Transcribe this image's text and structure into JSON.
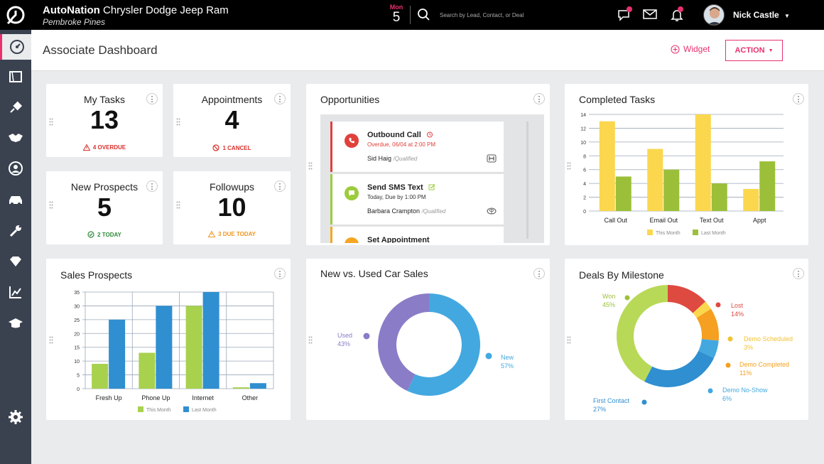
{
  "topbar": {
    "brand_name": "AutoNation",
    "dealer": "Chrysler Dodge Jeep Ram",
    "location": "Pembroke Pines",
    "date_day": "Mon",
    "date_num": "5",
    "search_placeholder": "Search by Lead, Contact, or Deal",
    "user_name": "Nick Castle"
  },
  "sidebar": {
    "items": [
      "dashboard-icon",
      "notes-icon",
      "satellite-icon",
      "handshake-icon",
      "user-icon",
      "car-icon",
      "wrench-icon",
      "diamond-icon",
      "chart-icon",
      "graduation-icon",
      "settings-icon"
    ]
  },
  "header": {
    "title": "Associate Dashboard",
    "widget_label": "Widget",
    "action_label": "ACTION"
  },
  "stats": {
    "my_tasks": {
      "title": "My Tasks",
      "value": "13",
      "foot": "4 OVERDUE",
      "color": "#d9302b"
    },
    "appointments": {
      "title": "Appointments",
      "value": "4",
      "foot": "1 CANCEL",
      "color": "#d9302b"
    },
    "new_prospects": {
      "title": "New Prospects",
      "value": "5",
      "foot": "2 TODAY",
      "color": "#2e8b3a"
    },
    "followups": {
      "title": "Followups",
      "value": "10",
      "foot": "3 DUE TODAY",
      "color": "#f0961e"
    }
  },
  "opportunities": {
    "title": "Opportunities",
    "items": [
      {
        "title": "Outbound Call",
        "sub": "Overdue, 06/04 at 2:00 PM",
        "name": "Sid Haig",
        "qual": "/Qualified",
        "color": "#e0413c"
      },
      {
        "title": "Send SMS Text",
        "sub": "Today, Due by 1:00 PM",
        "name": "Barbara Crampton",
        "qual": "/Qualified",
        "color": "#9ccc3c"
      },
      {
        "title": "Set Appointment",
        "sub": "",
        "name": "",
        "qual": "",
        "color": "#f5a623"
      }
    ]
  },
  "completed_tasks": {
    "title": "Completed Tasks",
    "legend_this": "This Month",
    "legend_last": "Last Month"
  },
  "sales_prospects": {
    "title": "Sales Prospects",
    "legend_this": "This Month",
    "legend_last": "Last Month"
  },
  "new_used": {
    "title": "New vs. Used Car Sales",
    "labels": [
      {
        "name": "Used",
        "pct": "43%"
      },
      {
        "name": "New",
        "pct": "57%"
      }
    ]
  },
  "deals": {
    "title": "Deals By Milestone",
    "labels": [
      {
        "name": "Won",
        "pct": "45%"
      },
      {
        "name": "Lost",
        "pct": "14%"
      },
      {
        "name": "Demo Scheduled",
        "pct": "3%"
      },
      {
        "name": "Demo Completed",
        "pct": "11%"
      },
      {
        "name": "Demo No-Show",
        "pct": "6%"
      },
      {
        "name": "First Contact",
        "pct": "27%"
      }
    ]
  },
  "chart_data": [
    {
      "type": "bar",
      "title": "Completed Tasks",
      "categories": [
        "Call Out",
        "Email Out",
        "Text Out",
        "Appt"
      ],
      "series": [
        {
          "name": "This Month",
          "values": [
            13,
            9,
            14,
            3.2
          ],
          "color": "#fbd74e"
        },
        {
          "name": "Last Month",
          "values": [
            5,
            6,
            4,
            7.2
          ],
          "color": "#9cbf3a"
        }
      ],
      "ylim": [
        0,
        14
      ],
      "yticks": [
        0,
        2,
        4,
        6,
        8,
        10,
        12,
        14
      ],
      "legend": "bottom",
      "grid": true
    },
    {
      "type": "bar",
      "title": "Sales Prospects",
      "categories": [
        "Fresh Up",
        "Phone Up",
        "Internet",
        "Other"
      ],
      "series": [
        {
          "name": "This Month",
          "values": [
            9,
            13,
            30,
            0.5
          ],
          "color": "#a8d14e"
        },
        {
          "name": "Last Month",
          "values": [
            25,
            30,
            35,
            2
          ],
          "color": "#2f8fd0"
        }
      ],
      "ylim": [
        0,
        35
      ],
      "yticks": [
        0,
        5,
        10,
        15,
        20,
        25,
        30,
        35
      ],
      "legend": "bottom",
      "grid": true
    },
    {
      "type": "pie",
      "title": "New vs. Used Car Sales",
      "categories": [
        "New",
        "Used"
      ],
      "values": [
        57,
        43
      ],
      "colors": [
        "#43a8e0",
        "#8a7cc7"
      ]
    },
    {
      "type": "pie",
      "title": "Deals By Milestone",
      "categories": [
        "Lost",
        "Demo Scheduled",
        "Demo Completed",
        "Demo No-Show",
        "First Contact",
        "Won"
      ],
      "values": [
        14,
        3,
        11,
        6,
        27,
        45
      ],
      "colors": [
        "#de4a40",
        "#fbd74e",
        "#f5a020",
        "#43a8e0",
        "#2f8fd0",
        "#b8d957"
      ]
    }
  ]
}
